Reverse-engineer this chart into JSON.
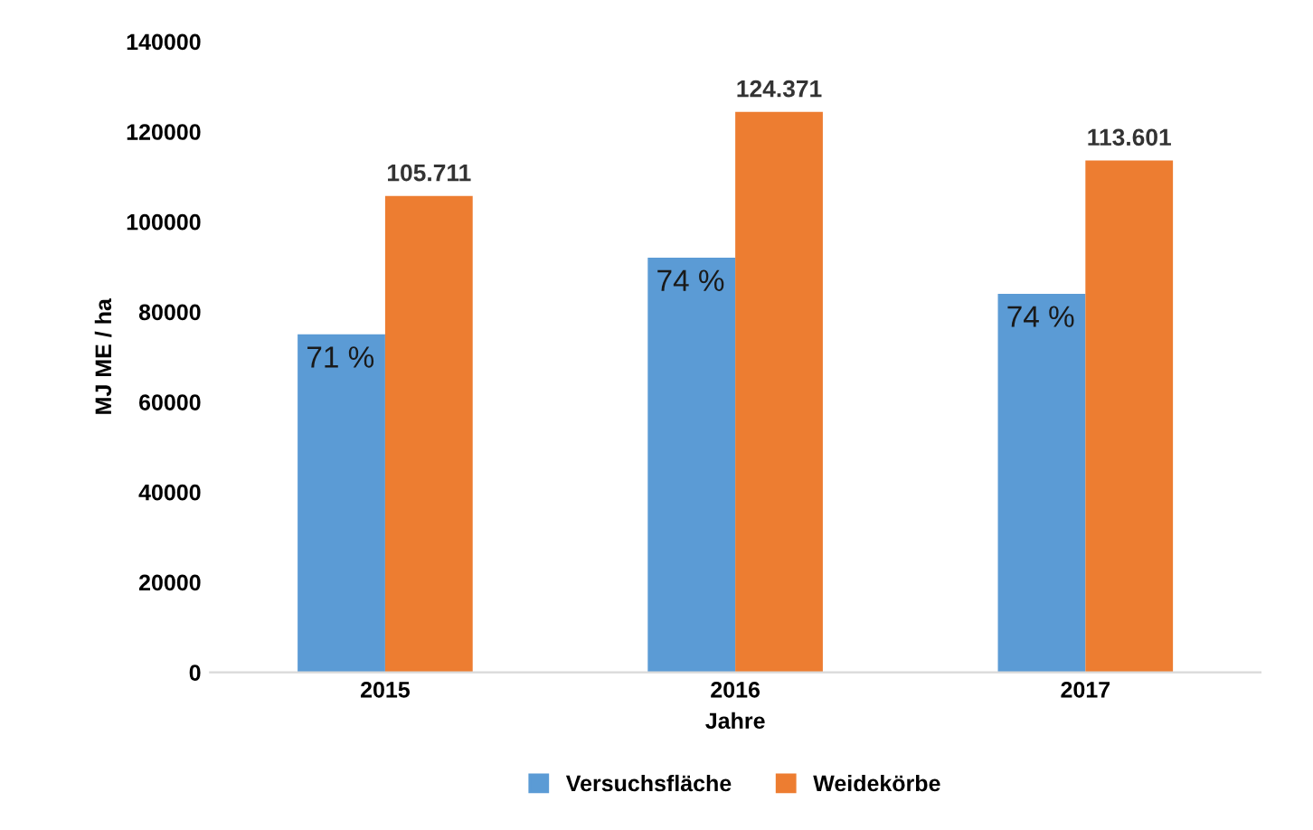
{
  "chart_data": {
    "type": "bar",
    "xlabel": "Jahre",
    "ylabel": "MJ ME / ha",
    "categories": [
      "2015",
      "2016",
      "2017"
    ],
    "series": [
      {
        "name": "Versuchsfläche",
        "color": "#5b9bd5",
        "values": [
          75000,
          92000,
          84000
        ]
      },
      {
        "name": "Weidekörbe",
        "color": "#ed7d31",
        "values": [
          105711,
          124371,
          113601
        ],
        "value_labels": [
          "105.711",
          "124.371",
          "113.601"
        ]
      }
    ],
    "ylim": [
      0,
      140000
    ],
    "yticks": [
      0,
      20000,
      40000,
      60000,
      80000,
      100000,
      120000,
      140000
    ],
    "annotations": [
      {
        "text": "71 %",
        "x": "2015",
        "y": 75000
      },
      {
        "text": "74 %",
        "x": "2016",
        "y": 92000
      },
      {
        "text": "74 %",
        "x": "2017",
        "y": 84000
      }
    ],
    "grid": false,
    "legend": "bottom"
  }
}
